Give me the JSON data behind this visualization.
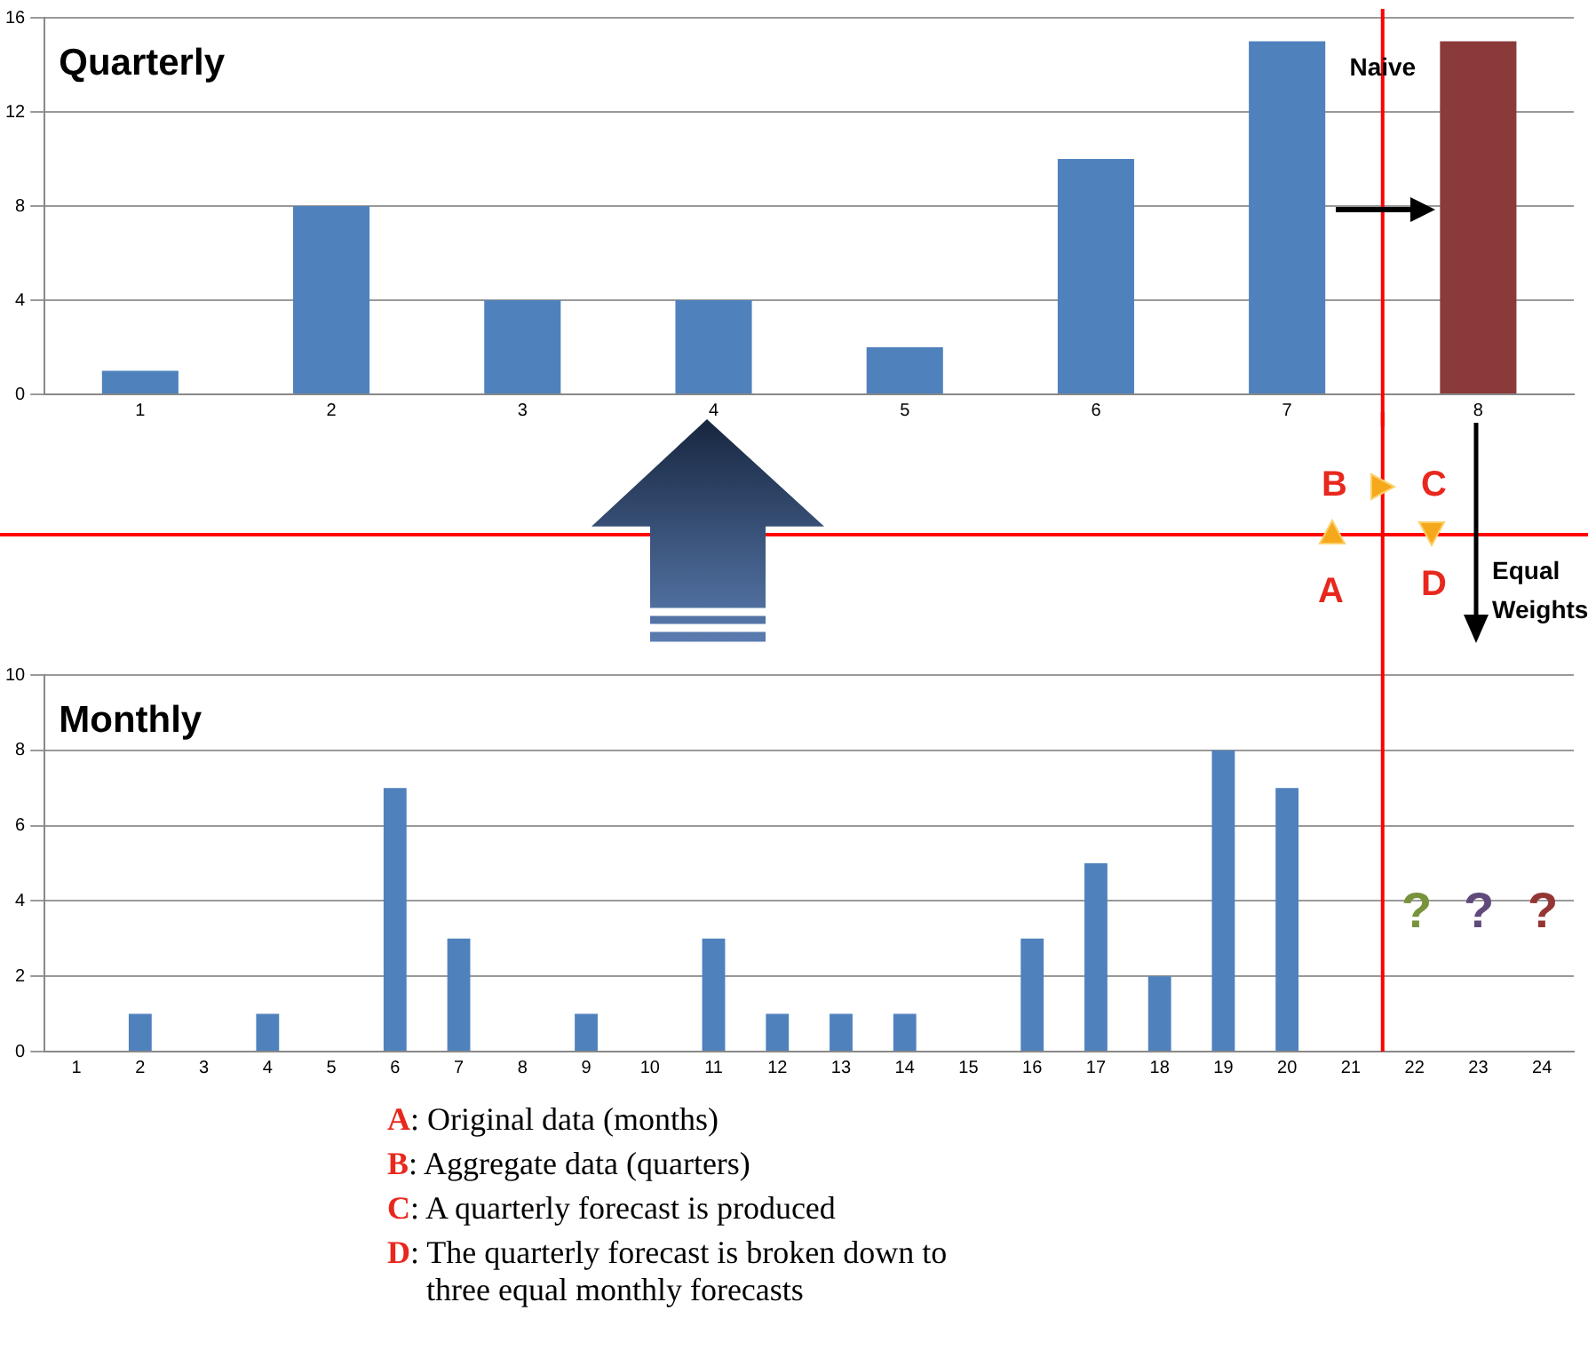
{
  "chart_data": [
    {
      "type": "bar",
      "title": "Quarterly",
      "x": [
        1,
        2,
        3,
        4,
        5,
        6,
        7,
        8
      ],
      "values": [
        1,
        8,
        4,
        4,
        2,
        10,
        15,
        15
      ],
      "colors": [
        "#4f81bd",
        "#4f81bd",
        "#4f81bd",
        "#4f81bd",
        "#4f81bd",
        "#4f81bd",
        "#4f81bd",
        "#8b3a3a"
      ],
      "xlim": [
        0.5,
        8.5
      ],
      "xticks": [
        1,
        2,
        3,
        4,
        5,
        6,
        7,
        8
      ],
      "ylim": [
        0,
        16
      ],
      "yticks": [
        0,
        4,
        8,
        12,
        16
      ],
      "grid": "y",
      "legend": false,
      "ref_lines": [
        {
          "axis": "x",
          "value": 7.5,
          "color": "#ff0000"
        }
      ],
      "annotations": [
        {
          "text": "Naive",
          "x": 7.5,
          "y": 13.3
        },
        "B",
        "C",
        "A",
        "D",
        "Equal Weights"
      ]
    },
    {
      "type": "bar",
      "title": "Monthly",
      "x": [
        1,
        2,
        3,
        4,
        5,
        6,
        7,
        8,
        9,
        10,
        11,
        12,
        13,
        14,
        15,
        16,
        17,
        18,
        19,
        20,
        21
      ],
      "values": [
        0,
        1,
        0,
        1,
        0,
        7,
        3,
        0,
        1,
        0,
        3,
        1,
        1,
        1,
        0,
        3,
        5,
        2,
        8,
        7,
        0
      ],
      "color": "#4f81bd",
      "xlim": [
        0.5,
        24.5
      ],
      "xticks": [
        1,
        2,
        3,
        4,
        5,
        6,
        7,
        8,
        9,
        10,
        11,
        12,
        13,
        14,
        15,
        16,
        17,
        18,
        19,
        20,
        21,
        22,
        23,
        24
      ],
      "ylim": [
        0,
        10
      ],
      "yticks": [
        0,
        2,
        4,
        6,
        8,
        10
      ],
      "grid": "y",
      "legend": false,
      "ref_lines": [
        {
          "axis": "x",
          "value": 21.5,
          "color": "#ff0000"
        }
      ],
      "annotations": [
        "?",
        "?",
        "?",
        "A: Original data (months)",
        "B: Aggregate data (quarters)",
        "C: A quarterly forecast is produced",
        "D: The quarterly forecast is broken down to three equal monthly forecasts"
      ]
    }
  ]
}
